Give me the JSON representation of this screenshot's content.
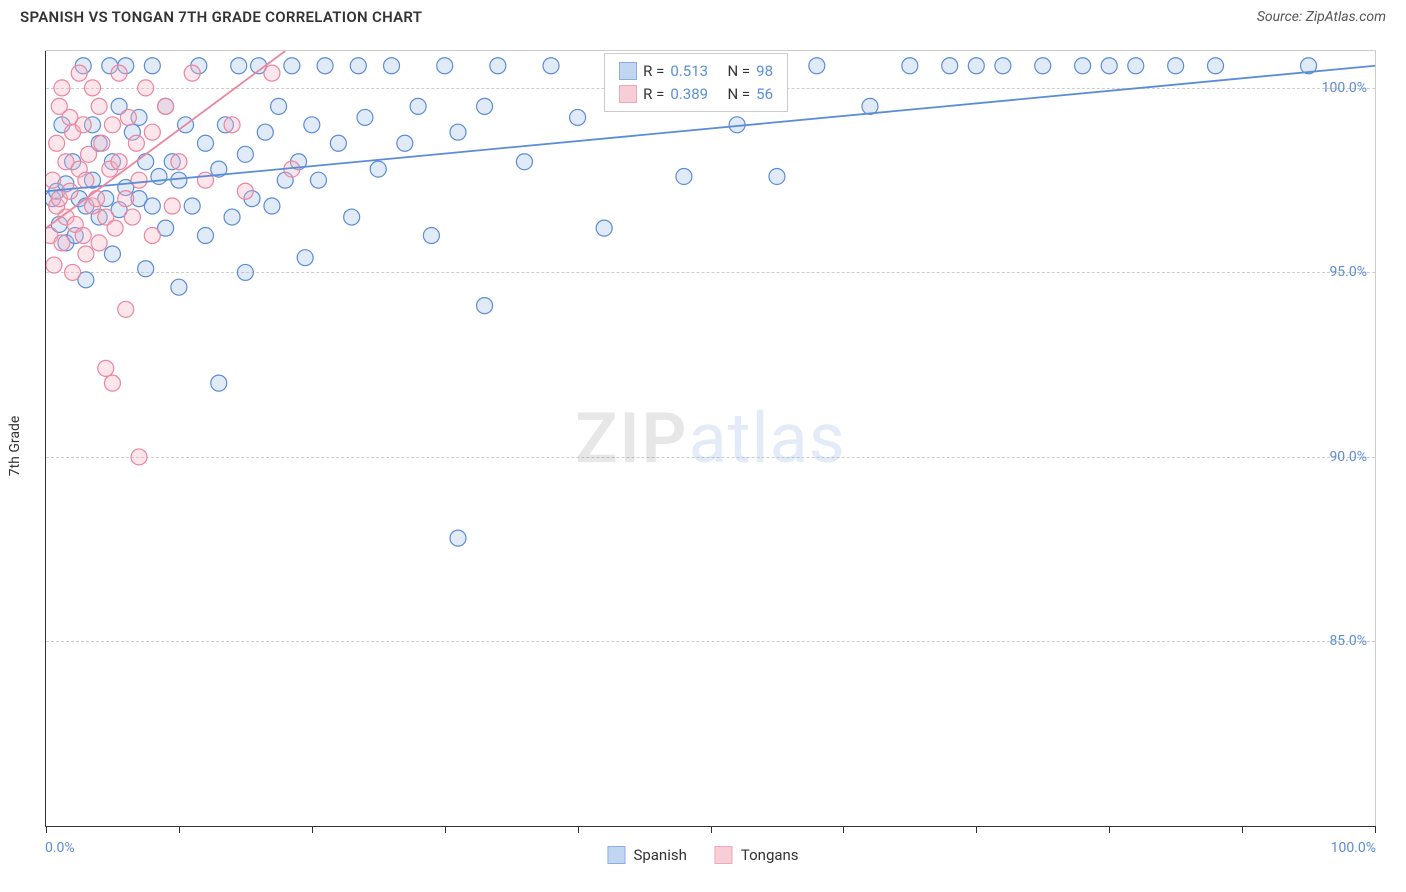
{
  "title": "SPANISH VS TONGAN 7TH GRADE CORRELATION CHART",
  "source": "Source: ZipAtlas.com",
  "watermark_zip": "ZIP",
  "watermark_atlas": "atlas",
  "y_axis_title": "7th Grade",
  "chart": {
    "type": "scatter",
    "background_color": "#ffffff",
    "grid_color": "#cccccc",
    "grid_dash": "4 4",
    "axis_color": "#333333",
    "label_color": "#5b8dd6",
    "label_fontsize": 14,
    "title_fontsize": 15,
    "xlim": [
      0,
      100
    ],
    "ylim": [
      80,
      101
    ],
    "x_ticks": [
      0,
      10,
      20,
      30,
      40,
      50,
      60,
      70,
      80,
      90,
      100
    ],
    "x_tick_labels": {
      "0": "0.0%",
      "100": "100.0%"
    },
    "y_ticks": [
      85,
      90,
      95,
      100
    ],
    "y_tick_labels": {
      "85": "85.0%",
      "90": "90.0%",
      "95": "95.0%",
      "100": "100.0%"
    },
    "marker_radius": 8,
    "marker_stroke_width": 1.2,
    "marker_fill_opacity": 0.35,
    "line_width": 1.8,
    "series": [
      {
        "name": "Spanish",
        "color_fill": "#a8c7ec",
        "color_stroke": "#5b8dd6",
        "R": "0.513",
        "N": "98",
        "trend": {
          "x1": 0,
          "y1": 97.2,
          "x2": 100,
          "y2": 100.6
        },
        "points": [
          [
            0.5,
            97.0
          ],
          [
            0.8,
            97.2
          ],
          [
            1.0,
            96.3
          ],
          [
            1.2,
            99.0
          ],
          [
            1.5,
            97.4
          ],
          [
            1.5,
            95.8
          ],
          [
            2.0,
            98.0
          ],
          [
            2.2,
            96.0
          ],
          [
            2.5,
            97.0
          ],
          [
            2.8,
            100.6
          ],
          [
            3.0,
            96.8
          ],
          [
            3.0,
            94.8
          ],
          [
            3.5,
            99.0
          ],
          [
            3.5,
            97.5
          ],
          [
            4.0,
            98.5
          ],
          [
            4.0,
            96.5
          ],
          [
            4.5,
            97.0
          ],
          [
            4.8,
            100.6
          ],
          [
            5.0,
            98.0
          ],
          [
            5.0,
            95.5
          ],
          [
            5.5,
            96.7
          ],
          [
            5.5,
            99.5
          ],
          [
            6.0,
            97.3
          ],
          [
            6.0,
            100.6
          ],
          [
            6.5,
            98.8
          ],
          [
            7.0,
            97.0
          ],
          [
            7.0,
            99.2
          ],
          [
            7.5,
            98.0
          ],
          [
            7.5,
            95.1
          ],
          [
            8.0,
            96.8
          ],
          [
            8.0,
            100.6
          ],
          [
            8.5,
            97.6
          ],
          [
            9.0,
            99.5
          ],
          [
            9.0,
            96.2
          ],
          [
            9.5,
            98.0
          ],
          [
            10.0,
            97.5
          ],
          [
            10.0,
            94.6
          ],
          [
            10.5,
            99.0
          ],
          [
            11.0,
            96.8
          ],
          [
            11.5,
            100.6
          ],
          [
            12.0,
            98.5
          ],
          [
            12.0,
            96.0
          ],
          [
            13.0,
            97.8
          ],
          [
            13.0,
            92.0
          ],
          [
            13.5,
            99.0
          ],
          [
            14.0,
            96.5
          ],
          [
            14.5,
            100.6
          ],
          [
            15.0,
            98.2
          ],
          [
            15.0,
            95.0
          ],
          [
            15.5,
            97.0
          ],
          [
            16.0,
            100.6
          ],
          [
            16.5,
            98.8
          ],
          [
            17.0,
            96.8
          ],
          [
            17.5,
            99.5
          ],
          [
            18.0,
            97.5
          ],
          [
            18.5,
            100.6
          ],
          [
            19.0,
            98.0
          ],
          [
            19.5,
            95.4
          ],
          [
            20.0,
            99.0
          ],
          [
            20.5,
            97.5
          ],
          [
            21.0,
            100.6
          ],
          [
            22.0,
            98.5
          ],
          [
            23.0,
            96.5
          ],
          [
            23.5,
            100.6
          ],
          [
            24.0,
            99.2
          ],
          [
            25.0,
            97.8
          ],
          [
            26.0,
            100.6
          ],
          [
            27.0,
            98.5
          ],
          [
            28.0,
            99.5
          ],
          [
            29.0,
            96.0
          ],
          [
            30.0,
            100.6
          ],
          [
            31.0,
            87.8
          ],
          [
            31.0,
            98.8
          ],
          [
            33.0,
            99.5
          ],
          [
            33.0,
            94.1
          ],
          [
            34.0,
            100.6
          ],
          [
            36.0,
            98.0
          ],
          [
            38.0,
            100.6
          ],
          [
            40.0,
            99.2
          ],
          [
            42.0,
            96.2
          ],
          [
            45.0,
            100.6
          ],
          [
            48.0,
            97.6
          ],
          [
            50.0,
            100.6
          ],
          [
            52.0,
            99.0
          ],
          [
            55.0,
            97.6
          ],
          [
            58.0,
            100.6
          ],
          [
            62.0,
            99.5
          ],
          [
            65.0,
            100.6
          ],
          [
            68.0,
            100.6
          ],
          [
            70.0,
            100.6
          ],
          [
            72.0,
            100.6
          ],
          [
            75.0,
            100.6
          ],
          [
            78.0,
            100.6
          ],
          [
            80.0,
            100.6
          ],
          [
            82.0,
            100.6
          ],
          [
            85.0,
            100.6
          ],
          [
            88.0,
            100.6
          ],
          [
            95.0,
            100.6
          ]
        ]
      },
      {
        "name": "Tongans",
        "color_fill": "#f5b8c6",
        "color_stroke": "#e986a0",
        "R": "0.389",
        "N": "56",
        "trend": {
          "x1": 0,
          "y1": 96.2,
          "x2": 18,
          "y2": 101.0
        },
        "points": [
          [
            0.3,
            96.0
          ],
          [
            0.5,
            97.5
          ],
          [
            0.6,
            95.2
          ],
          [
            0.8,
            98.5
          ],
          [
            0.8,
            96.8
          ],
          [
            1.0,
            99.5
          ],
          [
            1.0,
            97.0
          ],
          [
            1.2,
            95.8
          ],
          [
            1.2,
            100.0
          ],
          [
            1.5,
            96.5
          ],
          [
            1.5,
            98.0
          ],
          [
            1.8,
            99.2
          ],
          [
            1.8,
            97.2
          ],
          [
            2.0,
            95.0
          ],
          [
            2.0,
            98.8
          ],
          [
            2.2,
            96.3
          ],
          [
            2.5,
            97.8
          ],
          [
            2.5,
            100.4
          ],
          [
            2.8,
            96.0
          ],
          [
            2.8,
            99.0
          ],
          [
            3.0,
            97.5
          ],
          [
            3.0,
            95.5
          ],
          [
            3.2,
            98.2
          ],
          [
            3.5,
            96.8
          ],
          [
            3.5,
            100.0
          ],
          [
            3.8,
            97.0
          ],
          [
            4.0,
            99.5
          ],
          [
            4.0,
            95.8
          ],
          [
            4.2,
            98.5
          ],
          [
            4.5,
            96.5
          ],
          [
            4.5,
            92.4
          ],
          [
            4.8,
            97.8
          ],
          [
            5.0,
            99.0
          ],
          [
            5.0,
            92.0
          ],
          [
            5.2,
            96.2
          ],
          [
            5.5,
            98.0
          ],
          [
            5.5,
            100.4
          ],
          [
            6.0,
            97.0
          ],
          [
            6.0,
            94.0
          ],
          [
            6.2,
            99.2
          ],
          [
            6.5,
            96.5
          ],
          [
            6.8,
            98.5
          ],
          [
            7.0,
            90.0
          ],
          [
            7.0,
            97.5
          ],
          [
            7.5,
            100.0
          ],
          [
            8.0,
            96.0
          ],
          [
            8.0,
            98.8
          ],
          [
            9.0,
            99.5
          ],
          [
            9.5,
            96.8
          ],
          [
            10.0,
            98.0
          ],
          [
            11.0,
            100.4
          ],
          [
            12.0,
            97.5
          ],
          [
            14.0,
            99.0
          ],
          [
            15.0,
            97.2
          ],
          [
            17.0,
            100.4
          ],
          [
            18.5,
            97.8
          ]
        ]
      }
    ]
  },
  "legend_top": [
    {
      "series": 0
    },
    {
      "series": 1
    }
  ],
  "legend_bottom": [
    {
      "series": 0
    },
    {
      "series": 1
    }
  ],
  "r_label": "R = ",
  "n_label": "N = "
}
